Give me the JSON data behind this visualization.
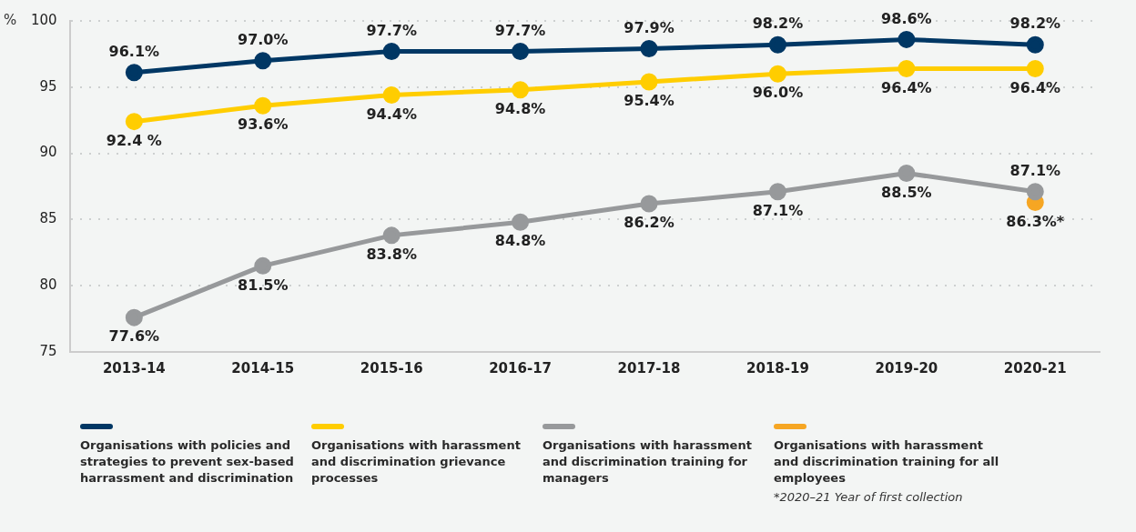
{
  "chart_data": {
    "type": "line",
    "ylabel": "%",
    "categories": [
      "2013-14",
      "2014-15",
      "2015-16",
      "2016-17",
      "2017-18",
      "2018-19",
      "2019-20",
      "2020-21"
    ],
    "series": [
      {
        "name": "Organisations with policies and strategies to prevent sex-based harrassment and discrimination",
        "color": "#003764",
        "values": [
          96.1,
          97.0,
          97.7,
          97.7,
          97.9,
          98.2,
          98.6,
          98.2
        ],
        "value_labels": [
          "96.1%",
          "97.0%",
          "97.7%",
          "97.7%",
          "97.9%",
          "98.2%",
          "98.6%",
          "98.2%"
        ]
      },
      {
        "name": "Organisations with harassment and discrimination grievance processes",
        "color": "#ffcd00",
        "values": [
          92.4,
          93.6,
          94.4,
          94.8,
          95.4,
          96.0,
          96.4,
          96.4
        ],
        "value_labels": [
          "92.4 %",
          "93.6%",
          "94.4%",
          "94.8%",
          "95.4%",
          "96.0%",
          "96.4%",
          "96.4%"
        ]
      },
      {
        "name": "Organisations with harassment and discrimination training for managers",
        "color": "#97999b",
        "values": [
          77.6,
          81.5,
          83.8,
          84.8,
          86.2,
          87.1,
          88.5,
          87.1
        ],
        "value_labels": [
          "77.6%",
          "81.5%",
          "83.8%",
          "84.8%",
          "86.2%",
          "87.1%",
          "88.5%",
          "87.1%"
        ]
      },
      {
        "name": "Organisations with harassment and discrimination training for all employees",
        "type": "scatter",
        "color": "#f6a623",
        "values": [
          null,
          null,
          null,
          null,
          null,
          null,
          null,
          86.3
        ],
        "value_labels": [
          null,
          null,
          null,
          null,
          null,
          null,
          null,
          "86.3%*"
        ]
      }
    ],
    "ylim": [
      75,
      100
    ],
    "yticks": [
      75,
      80,
      85,
      90,
      95,
      100
    ],
    "grid": "y",
    "legend": "bottom",
    "marker": "circle",
    "annotations": [
      "*2020–21 Year of first collection"
    ]
  }
}
